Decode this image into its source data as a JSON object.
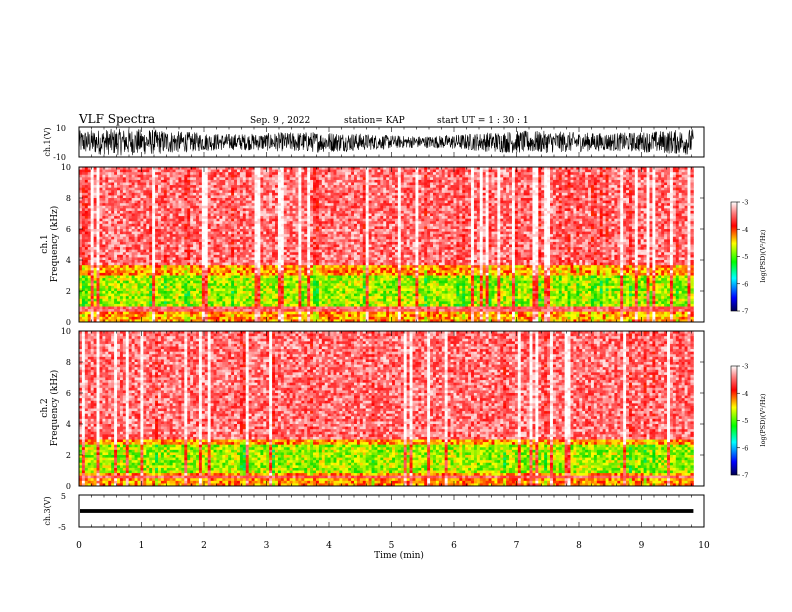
{
  "header": {
    "title": "VLF Spectra",
    "date": "Sep. 9 , 2022",
    "station": "station= KAP",
    "start_ut": "start  UT =  1 : 30 : 1"
  },
  "chart_data": [
    {
      "type": "line",
      "name": "ch1-waveform",
      "ylabel": "ch.1(V)",
      "ylim": [
        -10,
        10
      ],
      "yticks": [
        "10",
        "-10"
      ],
      "xlim": [
        0,
        10
      ],
      "data_extent_min": 9.83,
      "amplitude_envelope_V": [
        4,
        9
      ],
      "color": "#000000"
    },
    {
      "type": "heatmap",
      "name": "ch1-spectrogram",
      "ylabel": "ch.1",
      "ylabel2": "Frequency  (kHz)",
      "ylim": [
        0,
        10
      ],
      "yticks": [
        "0",
        "2",
        "4",
        "6",
        "8",
        "10"
      ],
      "xlim": [
        0,
        10
      ],
      "data_extent_min": 9.83,
      "band_structure_kHz": {
        "strong_band_top": 3.6,
        "green_core": [
          1.0,
          3.0
        ],
        "gap": [
          0.7,
          0.95
        ]
      },
      "colorbar": {
        "label": "log(PSD)(V²/Hz)",
        "ticks": [
          "-3",
          "-4",
          "-5",
          "-6",
          "-7"
        ],
        "range": [
          -7,
          -3
        ]
      }
    },
    {
      "type": "heatmap",
      "name": "ch2-spectrogram",
      "ylabel": "ch.2",
      "ylabel2": "Frequency  (kHz)",
      "ylim": [
        0,
        10
      ],
      "yticks": [
        "0",
        "2",
        "4",
        "6",
        "8",
        "10"
      ],
      "xlim": [
        0,
        10
      ],
      "data_extent_min": 9.83,
      "band_structure_kHz": {
        "strong_band_top": 3.0,
        "green_core": [
          0.8,
          2.6
        ],
        "gap": [
          0.45,
          0.65
        ]
      },
      "colorbar": {
        "label": "log(PSD)(V²/Hz)",
        "ticks": [
          "-3",
          "-4",
          "-5",
          "-6",
          "-7"
        ],
        "range": [
          -7,
          -3
        ]
      }
    },
    {
      "type": "line",
      "name": "ch3-waveform",
      "ylabel": "ch.3(V)",
      "ylim": [
        -5,
        5
      ],
      "yticks": [
        "5",
        "-5"
      ],
      "xlim": [
        0,
        10
      ],
      "data_extent_min": 9.83,
      "level_V": 0,
      "amplitude_V": 0.6,
      "color": "#000000"
    }
  ],
  "xaxis": {
    "label": "Time  (min)",
    "ticks": [
      "0",
      "1",
      "2",
      "3",
      "4",
      "5",
      "6",
      "7",
      "8",
      "9",
      "10"
    ]
  },
  "colors": {
    "waveform": "#000000",
    "colormap": [
      "#000080",
      "#0000ff",
      "#00ffff",
      "#00ff00",
      "#ffff00",
      "#ff0000",
      "#ffffff"
    ]
  }
}
